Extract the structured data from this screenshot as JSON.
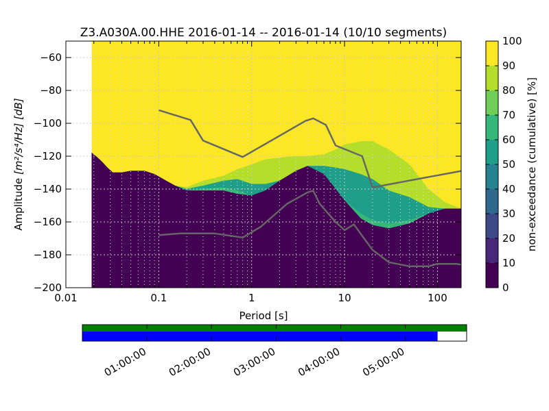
{
  "chart_data": {
    "type": "heatmap",
    "title": "Z3.A030A.00.HHE   2016-01-14 -- 2016-01-14  (10/10 segments)",
    "xlabel": "Period [s]",
    "ylabel_prefix": "Amplitude ",
    "ylabel_units": "[m²/s⁴/Hz] [dB]",
    "x_scale": "log",
    "xlim": [
      0.01,
      180
    ],
    "ylim": [
      -200,
      -50
    ],
    "x_ticks": [
      {
        "v": 0.01,
        "label": "0.01"
      },
      {
        "v": 0.1,
        "label": "0.1"
      },
      {
        "v": 1,
        "label": "1"
      },
      {
        "v": 10,
        "label": "10"
      },
      {
        "v": 100,
        "label": "100"
      }
    ],
    "y_ticks": [
      {
        "v": -60,
        "label": "−60"
      },
      {
        "v": -80,
        "label": "−80"
      },
      {
        "v": -100,
        "label": "−100"
      },
      {
        "v": -120,
        "label": "−120"
      },
      {
        "v": -140,
        "label": "−140"
      },
      {
        "v": -160,
        "label": "−160"
      },
      {
        "v": -180,
        "label": "−180"
      },
      {
        "v": -200,
        "label": "−200"
      }
    ],
    "grid": true,
    "psd_data_period_min": 0.019,
    "colorbar": {
      "label": "non-exceedance (cumulative) [%]",
      "range": [
        0,
        100
      ],
      "ticks": [
        0,
        10,
        20,
        30,
        40,
        50,
        60,
        70,
        80,
        90,
        100
      ],
      "levels": [
        {
          "from": 0,
          "to": 10,
          "color": "#440154"
        },
        {
          "from": 10,
          "to": 20,
          "color": "#482878"
        },
        {
          "from": 20,
          "to": 30,
          "color": "#3e4989"
        },
        {
          "from": 30,
          "to": 40,
          "color": "#31688e"
        },
        {
          "from": 40,
          "to": 50,
          "color": "#26828e"
        },
        {
          "from": 50,
          "to": 60,
          "color": "#1f9e89"
        },
        {
          "from": 60,
          "to": 70,
          "color": "#35b779"
        },
        {
          "from": 70,
          "to": 80,
          "color": "#6ece58"
        },
        {
          "from": 80,
          "to": 90,
          "color": "#b5de2b"
        },
        {
          "from": 90,
          "to": 100,
          "color": "#fde725"
        }
      ]
    },
    "band_edges": [
      {
        "p": 0.019,
        "z0": -118,
        "z1": -118,
        "z2": -118,
        "z3": -118
      },
      {
        "p": 0.021,
        "z0": -120,
        "z1": -120,
        "z2": -120,
        "z3": -120
      },
      {
        "p": 0.023,
        "z0": -122,
        "z1": -122,
        "z2": -122,
        "z3": -122
      },
      {
        "p": 0.025,
        "z0": -124,
        "z1": -124,
        "z2": -124,
        "z3": -124
      },
      {
        "p": 0.028,
        "z0": -127,
        "z1": -127,
        "z2": -127,
        "z3": -127
      },
      {
        "p": 0.032,
        "z0": -130,
        "z1": -130,
        "z2": -130,
        "z3": -130
      },
      {
        "p": 0.04,
        "z0": -130,
        "z1": -130,
        "z2": -130,
        "z3": -130
      },
      {
        "p": 0.05,
        "z0": -129,
        "z1": -129,
        "z2": -129,
        "z3": -129
      },
      {
        "p": 0.07,
        "z0": -129,
        "z1": -129,
        "z2": -129,
        "z3": -129
      },
      {
        "p": 0.09,
        "z0": -131,
        "z1": -131,
        "z2": -131,
        "z3": -131
      },
      {
        "p": 0.12,
        "z0": -135,
        "z1": -135,
        "z2": -135,
        "z3": -135
      },
      {
        "p": 0.15,
        "z0": -138,
        "z1": -138,
        "z2": -138,
        "z3": -138
      },
      {
        "p": 0.2,
        "z0": -141,
        "z1": -141,
        "z2": -140,
        "z3": -139
      },
      {
        "p": 0.3,
        "z0": -141,
        "z1": -140,
        "z2": -138,
        "z3": -135
      },
      {
        "p": 0.5,
        "z0": -141,
        "z1": -139,
        "z2": -135,
        "z3": -132
      },
      {
        "p": 0.7,
        "z0": -143,
        "z1": -141,
        "z2": -134,
        "z3": -128
      },
      {
        "p": 1,
        "z0": -144,
        "z1": -144,
        "z2": -137,
        "z3": -125
      },
      {
        "p": 1.4,
        "z0": -141,
        "z1": -141,
        "z2": -137,
        "z3": -122
      },
      {
        "p": 2,
        "z0": -135,
        "z1": -135,
        "z2": -135,
        "z3": -121
      },
      {
        "p": 3,
        "z0": -129,
        "z1": -129,
        "z2": -129,
        "z3": -120
      },
      {
        "p": 4,
        "z0": -126,
        "z1": -126,
        "z2": -126,
        "z3": -120
      },
      {
        "p": 6,
        "z0": -131,
        "z1": -131,
        "z2": -126,
        "z3": -119
      },
      {
        "p": 8,
        "z0": -140,
        "z1": -140,
        "z2": -127,
        "z3": -116
      },
      {
        "p": 10,
        "z0": -147,
        "z1": -147,
        "z2": -128,
        "z3": -113
      },
      {
        "p": 15,
        "z0": -158,
        "z1": -155,
        "z2": -131,
        "z3": -111
      },
      {
        "p": 20,
        "z0": -162,
        "z1": -159,
        "z2": -134,
        "z3": -111
      },
      {
        "p": 30,
        "z0": -164,
        "z1": -161,
        "z2": -141,
        "z3": -116
      },
      {
        "p": 50,
        "z0": -161,
        "z1": -159,
        "z2": -145,
        "z3": -125
      },
      {
        "p": 80,
        "z0": -155,
        "z1": -155,
        "z2": -151,
        "z3": -140
      },
      {
        "p": 120,
        "z0": -152,
        "z1": -152,
        "z2": -152,
        "z3": -148
      },
      {
        "p": 180,
        "z0": -152,
        "z1": -152,
        "z2": -152,
        "z3": -152
      }
    ],
    "reference_curves": [
      {
        "points": [
          [
            0.1,
            -92
          ],
          [
            0.22,
            -98
          ],
          [
            0.3,
            -110.5
          ],
          [
            0.8,
            -120.5
          ],
          [
            3.8,
            -98.5
          ],
          [
            4.6,
            -97
          ],
          [
            6.3,
            -101
          ],
          [
            8,
            -113.5
          ],
          [
            15.5,
            -120
          ],
          [
            20,
            -139
          ],
          [
            180,
            -129
          ]
        ]
      },
      {
        "points": [
          [
            0.1,
            -168
          ],
          [
            0.17,
            -167
          ],
          [
            0.4,
            -167
          ],
          [
            0.8,
            -169.5
          ],
          [
            1.25,
            -163
          ],
          [
            2.4,
            -149
          ],
          [
            4,
            -142
          ],
          [
            4.6,
            -141
          ],
          [
            5.4,
            -149
          ],
          [
            8,
            -160
          ],
          [
            10,
            -165
          ],
          [
            12.6,
            -161.5
          ],
          [
            20,
            -177
          ],
          [
            30,
            -184.5
          ],
          [
            50,
            -187
          ],
          [
            80,
            -187
          ],
          [
            100,
            -185.5
          ],
          [
            160,
            -185.5
          ],
          [
            180,
            -186
          ]
        ]
      }
    ]
  },
  "timeline": {
    "ticks": [
      {
        "label": "01:00:00",
        "t": 1
      },
      {
        "label": "02:00:00",
        "t": 2
      },
      {
        "label": "03:00:00",
        "t": 3
      },
      {
        "label": "04:00:00",
        "t": 4
      },
      {
        "label": "05:00:00",
        "t": 5
      }
    ],
    "time_range_hours": [
      0,
      5.95
    ],
    "bars": [
      {
        "color": "#008000",
        "coverage": [
          0,
          5.95
        ]
      },
      {
        "color": "#0000ff",
        "coverage": [
          0,
          5.5
        ]
      }
    ]
  }
}
